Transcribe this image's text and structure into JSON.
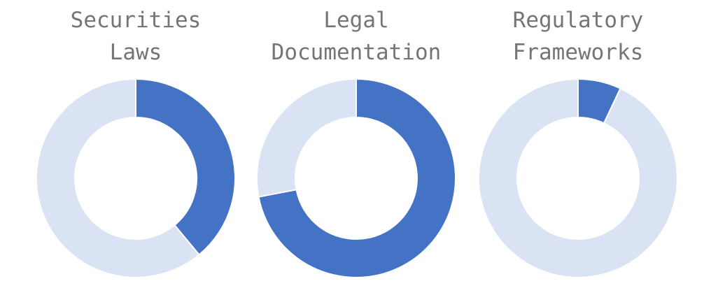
{
  "chart_data": [
    {
      "type": "pie",
      "title_lines": [
        "Securities",
        "Laws"
      ],
      "values": [
        39,
        61
      ],
      "colors": [
        "#4472c4",
        "#dae3f3"
      ]
    },
    {
      "type": "pie",
      "title_lines": [
        "Legal",
        "Documentation"
      ],
      "values": [
        72,
        28
      ],
      "colors": [
        "#4472c4",
        "#dae3f3"
      ]
    },
    {
      "type": "pie",
      "title_lines": [
        "Regulatory",
        "Frameworks"
      ],
      "values": [
        7,
        93
      ],
      "colors": [
        "#4472c4",
        "#dae3f3"
      ]
    }
  ]
}
